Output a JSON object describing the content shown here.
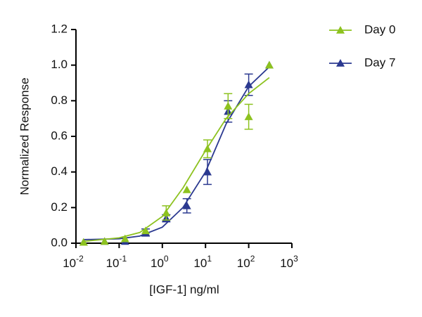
{
  "chart_data": {
    "type": "scatter",
    "xscale": "log",
    "xlabel": "[IGF-1] ng/ml",
    "ylabel": "Normalized Response",
    "xlim": [
      0.01,
      1000
    ],
    "ylim": [
      0,
      1.2
    ],
    "xticks": [
      {
        "value": 0.01,
        "label": "10",
        "exponent": "-2"
      },
      {
        "value": 0.1,
        "label": "10",
        "exponent": "-1"
      },
      {
        "value": 1,
        "label": "10",
        "exponent": "0"
      },
      {
        "value": 10,
        "label": "10",
        "exponent": "1"
      },
      {
        "value": 100,
        "label": "10",
        "exponent": "2"
      },
      {
        "value": 1000,
        "label": "10",
        "exponent": "3"
      }
    ],
    "yticks": [
      {
        "value": 0,
        "label": "0.0"
      },
      0.2,
      0.4,
      0.6,
      0.8,
      {
        "value": 1,
        "label": "1.0"
      },
      1.2
    ],
    "legend": "top-right",
    "series": [
      {
        "name": "Day 0",
        "color": "#8dc21f",
        "x": [
          0.015,
          0.046,
          0.137,
          0.41,
          1.23,
          3.7,
          11.1,
          33.3,
          100,
          300
        ],
        "values": [
          0.005,
          0.01,
          0.025,
          0.07,
          0.17,
          0.3,
          0.53,
          0.77,
          0.71,
          1.0
        ],
        "errors": [
          null,
          null,
          null,
          null,
          0.04,
          null,
          0.05,
          0.07,
          0.07,
          null
        ],
        "fit": {
          "x": [
            0.015,
            0.1,
            0.3,
            1,
            3,
            10,
            30,
            100,
            300
          ],
          "values": [
            0.01,
            0.03,
            0.06,
            0.15,
            0.31,
            0.52,
            0.7,
            0.84,
            0.93
          ]
        }
      },
      {
        "name": "Day 7",
        "color": "#2b3990",
        "x": [
          0.015,
          0.046,
          0.137,
          0.41,
          1.23,
          3.7,
          11.1,
          33.3,
          100,
          300
        ],
        "values": [
          0.005,
          0.01,
          0.01,
          0.06,
          0.14,
          0.21,
          0.4,
          0.74,
          0.89,
          1.0
        ],
        "errors": [
          null,
          null,
          null,
          0.02,
          0.02,
          0.04,
          0.07,
          0.06,
          0.06,
          null
        ],
        "fit": {
          "x": [
            0.015,
            0.1,
            0.3,
            1,
            3,
            10,
            30,
            100,
            300
          ],
          "values": [
            0.02,
            0.025,
            0.04,
            0.09,
            0.2,
            0.4,
            0.67,
            0.88,
            0.99
          ]
        }
      }
    ]
  }
}
